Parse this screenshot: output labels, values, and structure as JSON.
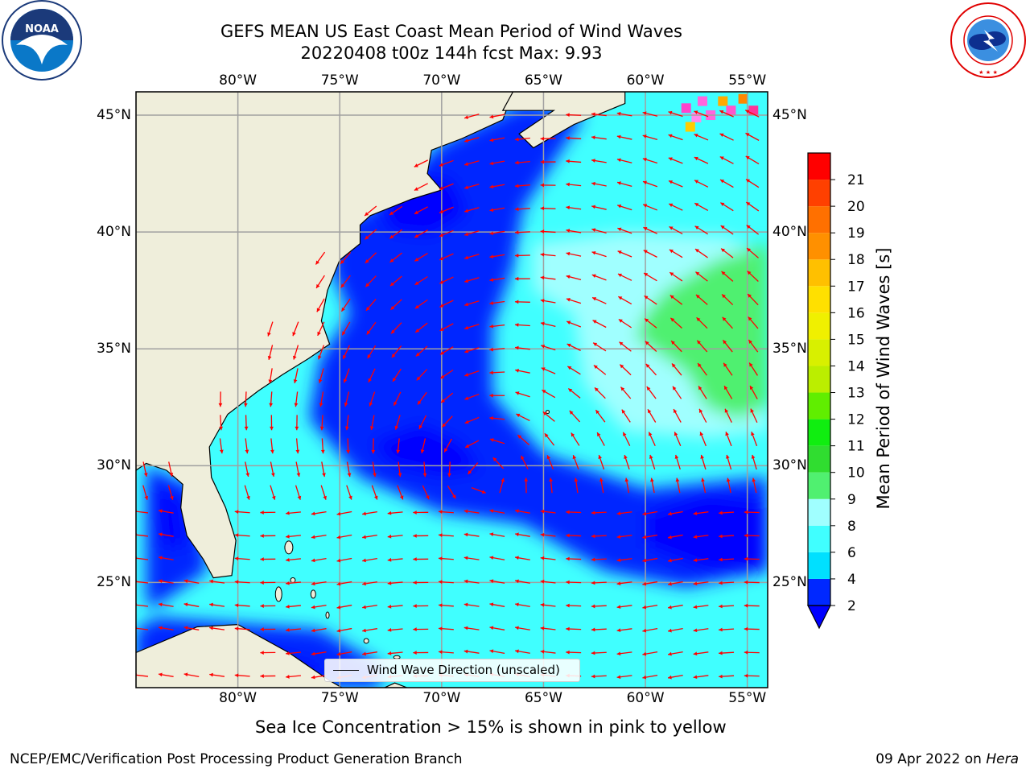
{
  "header": {
    "title_line1": "GEFS MEAN US East Coast Mean Period of Wind Waves",
    "title_line2": "20220408 t00z 144h fcst   Max: 9.93",
    "noaa_logo_text": "NOAA",
    "noaa_ring_text": "NATIONAL OCEANIC AND ATMOSPHERIC ADMINISTRATION · U.S. DEPARTMENT OF COMMERCE",
    "nws_ring_text": "NATIONAL WEATHER SERVICE"
  },
  "map": {
    "projection": "plate-carree",
    "lon_range": [
      -85,
      -54
    ],
    "lat_range": [
      20.5,
      46
    ],
    "lon_ticks": [
      "80°W",
      "75°W",
      "70°W",
      "65°W",
      "60°W",
      "55°W"
    ],
    "lon_tick_values": [
      -80,
      -75,
      -70,
      -65,
      -60,
      -55
    ],
    "lat_ticks": [
      "25°N",
      "30°N",
      "35°N",
      "40°N",
      "45°N"
    ],
    "lat_tick_values": [
      25,
      30,
      35,
      40,
      45
    ],
    "grid": true,
    "land_color": "#efeedb",
    "arrow_color": "#ff0000",
    "vector_legend": "Wind Wave Direction (unscaled)",
    "vector_legend_placement": "bottom-center"
  },
  "colorbar": {
    "label": "Mean Period of Wind Waves [s]",
    "ticks": [
      "2",
      "4",
      "6",
      "8",
      "9",
      "10",
      "11",
      "12",
      "13",
      "14",
      "15",
      "16",
      "17",
      "18",
      "19",
      "20",
      "21"
    ],
    "colors": [
      "#0028ff",
      "#00e0ff",
      "#40ffff",
      "#a0ffff",
      "#50f070",
      "#30dd30",
      "#10ee10",
      "#60ee00",
      "#bbee00",
      "#d8f000",
      "#f0f000",
      "#ffe000",
      "#ffc000",
      "#ff9000",
      "#ff7000",
      "#ff4000",
      "#ff0000"
    ],
    "under_color": "#0000ff"
  },
  "chart_data": {
    "type": "heatmap",
    "title": "GEFS MEAN US East Coast Mean Period of Wind Waves",
    "subtitle": "20220408 t00z 144h fcst   Max: 9.93",
    "max_value": 9.93,
    "value_label": "Mean Period of Wind Waves [s]",
    "levels": [
      2,
      4,
      6,
      8,
      9,
      10,
      11,
      12,
      13,
      14,
      15,
      16,
      17,
      18,
      19,
      20,
      21
    ],
    "region_values": [
      {
        "lon": -57,
        "lat": 36.5,
        "value": 9.5
      },
      {
        "lon": -62,
        "lat": 36,
        "value": 8.5
      },
      {
        "lon": -67,
        "lat": 38,
        "value": 7
      },
      {
        "lon": -72,
        "lat": 37,
        "value": 5
      },
      {
        "lon": -70,
        "lat": 30.5,
        "value": 1.8
      },
      {
        "lon": -72,
        "lat": 41,
        "value": 1.8
      },
      {
        "lon": -58,
        "lat": 27,
        "value": 1.8
      },
      {
        "lon": -75,
        "lat": 25,
        "value": 7
      },
      {
        "lon": -65,
        "lat": 25,
        "value": 7
      },
      {
        "lon": -83.5,
        "lat": 27.5,
        "value": 1.8
      }
    ]
  },
  "footer": {
    "sea_ice_note": "Sea Ice Concentration > 15% is shown in pink to yellow",
    "credit": "NCEP/EMC/Verification Post Processing Product Generation Branch",
    "date": "09 Apr 2022 on ",
    "machine": "Hera"
  }
}
